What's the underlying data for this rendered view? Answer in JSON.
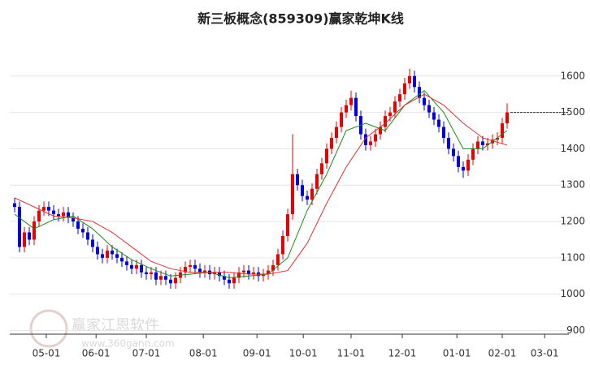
{
  "chart_data": {
    "type": "candlestick",
    "title": "新三板概念(859309)赢家乾坤K线",
    "xlim": [
      -1,
      113
    ],
    "ylim": [
      890,
      1720
    ],
    "yticks": [
      900,
      1000,
      1100,
      1200,
      1300,
      1400,
      1500,
      1600
    ],
    "xticks": [
      {
        "value": 6.5,
        "label": "05-01"
      },
      {
        "value": 16.7,
        "label": "06-01"
      },
      {
        "value": 27,
        "label": "07-01"
      },
      {
        "value": 38.7,
        "label": "08-01"
      },
      {
        "value": 49.7,
        "label": "09-01"
      },
      {
        "value": 59.2,
        "label": "10-01"
      },
      {
        "value": 69,
        "label": "11-01"
      },
      {
        "value": 79.5,
        "label": "12-01"
      },
      {
        "value": 90.7,
        "label": "01-01"
      },
      {
        "value": 100,
        "label": "02-01"
      },
      {
        "value": 108.7,
        "label": "03-01"
      }
    ],
    "grid": true,
    "up_color": "#e60000",
    "down_color": "#0000dd",
    "x": [
      0,
      1,
      2,
      3,
      4,
      5,
      6,
      7,
      8,
      9,
      10,
      11,
      12,
      13,
      14,
      15,
      16,
      17,
      18,
      19,
      20,
      21,
      22,
      23,
      24,
      25,
      26,
      27,
      28,
      29,
      30,
      31,
      32,
      33,
      34,
      35,
      36,
      37,
      38,
      39,
      40,
      41,
      42,
      43,
      44,
      45,
      46,
      47,
      48,
      49,
      50,
      51,
      52,
      53,
      54,
      55,
      56,
      57,
      58,
      59,
      60,
      61,
      62,
      63,
      64,
      65,
      66,
      67,
      68,
      69,
      70,
      71,
      72,
      73,
      74,
      75,
      76,
      77,
      78,
      79,
      80,
      81,
      82,
      83,
      84,
      85,
      86,
      87,
      88,
      89,
      90,
      91,
      92,
      93,
      94,
      95,
      96,
      97,
      98,
      99,
      100,
      101
    ],
    "open": [
      1250,
      1240,
      1130,
      1170,
      1150,
      1200,
      1230,
      1240,
      1230,
      1220,
      1215,
      1225,
      1210,
      1200,
      1180,
      1170,
      1150,
      1130,
      1110,
      1100,
      1120,
      1110,
      1100,
      1090,
      1080,
      1070,
      1080,
      1060,
      1055,
      1060,
      1040,
      1050,
      1040,
      1030,
      1045,
      1060,
      1075,
      1080,
      1070,
      1060,
      1065,
      1055,
      1060,
      1050,
      1040,
      1030,
      1045,
      1060,
      1065,
      1055,
      1060,
      1050,
      1055,
      1065,
      1080,
      1110,
      1160,
      1220,
      1330,
      1300,
      1270,
      1260,
      1290,
      1330,
      1360,
      1400,
      1430,
      1460,
      1500,
      1520,
      1540,
      1490,
      1440,
      1410,
      1420,
      1440,
      1460,
      1490,
      1500,
      1530,
      1550,
      1580,
      1600,
      1570,
      1540,
      1520,
      1500,
      1480,
      1460,
      1430,
      1400,
      1380,
      1350,
      1340,
      1370,
      1400,
      1420,
      1410,
      1415,
      1425,
      1430,
      1470
    ],
    "high": [
      1265,
      1255,
      1185,
      1185,
      1215,
      1245,
      1255,
      1255,
      1245,
      1235,
      1240,
      1240,
      1225,
      1215,
      1195,
      1185,
      1165,
      1145,
      1125,
      1135,
      1135,
      1125,
      1115,
      1105,
      1095,
      1095,
      1095,
      1075,
      1075,
      1075,
      1065,
      1065,
      1055,
      1060,
      1075,
      1090,
      1095,
      1095,
      1085,
      1080,
      1080,
      1075,
      1075,
      1065,
      1055,
      1060,
      1075,
      1080,
      1080,
      1075,
      1075,
      1070,
      1080,
      1095,
      1125,
      1175,
      1235,
      1440,
      1345,
      1315,
      1285,
      1305,
      1345,
      1375,
      1415,
      1445,
      1475,
      1515,
      1535,
      1560,
      1555,
      1505,
      1455,
      1435,
      1455,
      1475,
      1505,
      1515,
      1545,
      1565,
      1595,
      1620,
      1615,
      1585,
      1555,
      1535,
      1515,
      1495,
      1475,
      1445,
      1415,
      1395,
      1365,
      1385,
      1415,
      1435,
      1435,
      1430,
      1440,
      1445,
      1485,
      1525
    ],
    "low": [
      1225,
      1115,
      1115,
      1135,
      1135,
      1185,
      1215,
      1215,
      1205,
      1200,
      1200,
      1195,
      1185,
      1165,
      1155,
      1135,
      1115,
      1095,
      1085,
      1085,
      1095,
      1085,
      1075,
      1065,
      1055,
      1055,
      1045,
      1040,
      1040,
      1025,
      1025,
      1025,
      1015,
      1015,
      1030,
      1045,
      1060,
      1055,
      1045,
      1045,
      1040,
      1040,
      1035,
      1025,
      1015,
      1015,
      1030,
      1045,
      1040,
      1040,
      1035,
      1035,
      1040,
      1050,
      1065,
      1095,
      1145,
      1205,
      1285,
      1255,
      1245,
      1245,
      1275,
      1315,
      1345,
      1385,
      1415,
      1445,
      1485,
      1505,
      1475,
      1425,
      1395,
      1395,
      1405,
      1425,
      1445,
      1475,
      1485,
      1515,
      1535,
      1565,
      1555,
      1525,
      1505,
      1485,
      1465,
      1445,
      1415,
      1385,
      1365,
      1335,
      1320,
      1325,
      1355,
      1385,
      1395,
      1395,
      1400,
      1410,
      1415,
      1455
    ],
    "close": [
      1240,
      1130,
      1170,
      1150,
      1200,
      1230,
      1240,
      1230,
      1220,
      1215,
      1225,
      1210,
      1200,
      1180,
      1170,
      1150,
      1130,
      1110,
      1100,
      1120,
      1110,
      1100,
      1090,
      1080,
      1070,
      1080,
      1060,
      1055,
      1060,
      1040,
      1050,
      1040,
      1030,
      1045,
      1060,
      1075,
      1080,
      1070,
      1060,
      1065,
      1055,
      1060,
      1050,
      1040,
      1030,
      1045,
      1060,
      1065,
      1055,
      1060,
      1050,
      1055,
      1065,
      1080,
      1110,
      1160,
      1220,
      1330,
      1300,
      1270,
      1260,
      1290,
      1330,
      1360,
      1400,
      1430,
      1460,
      1500,
      1520,
      1540,
      1490,
      1440,
      1410,
      1420,
      1440,
      1460,
      1490,
      1500,
      1530,
      1550,
      1580,
      1600,
      1570,
      1540,
      1520,
      1500,
      1480,
      1460,
      1430,
      1400,
      1380,
      1350,
      1340,
      1370,
      1400,
      1420,
      1410,
      1415,
      1425,
      1430,
      1470,
      1500
    ],
    "lines": [
      {
        "color": "#1a8a1a",
        "x": [
          0,
          4,
          8,
          12,
          16,
          20,
          24,
          28,
          32,
          36,
          40,
          44,
          48,
          52,
          56,
          60,
          64,
          68,
          72,
          76,
          80,
          84,
          88,
          92,
          96,
          101
        ],
        "values": [
          1220,
          1180,
          1205,
          1215,
          1180,
          1130,
          1095,
          1070,
          1050,
          1055,
          1060,
          1045,
          1050,
          1055,
          1100,
          1230,
          1330,
          1450,
          1470,
          1450,
          1520,
          1560,
          1500,
          1400,
          1400,
          1450
        ]
      },
      {
        "color": "#e03030",
        "x": [
          0,
          4,
          8,
          12,
          16,
          20,
          24,
          28,
          32,
          36,
          40,
          44,
          48,
          52,
          56,
          60,
          64,
          68,
          72,
          76,
          80,
          84,
          88,
          92,
          96,
          101
        ],
        "values": [
          1265,
          1240,
          1215,
          1210,
          1200,
          1170,
          1130,
          1090,
          1070,
          1060,
          1060,
          1060,
          1055,
          1055,
          1065,
          1140,
          1250,
          1350,
          1430,
          1470,
          1520,
          1550,
          1520,
          1470,
          1430,
          1410
        ]
      }
    ],
    "price_line": 1500,
    "watermark": "赢家江恩软件",
    "watermark_url": "www.360gann.com"
  }
}
